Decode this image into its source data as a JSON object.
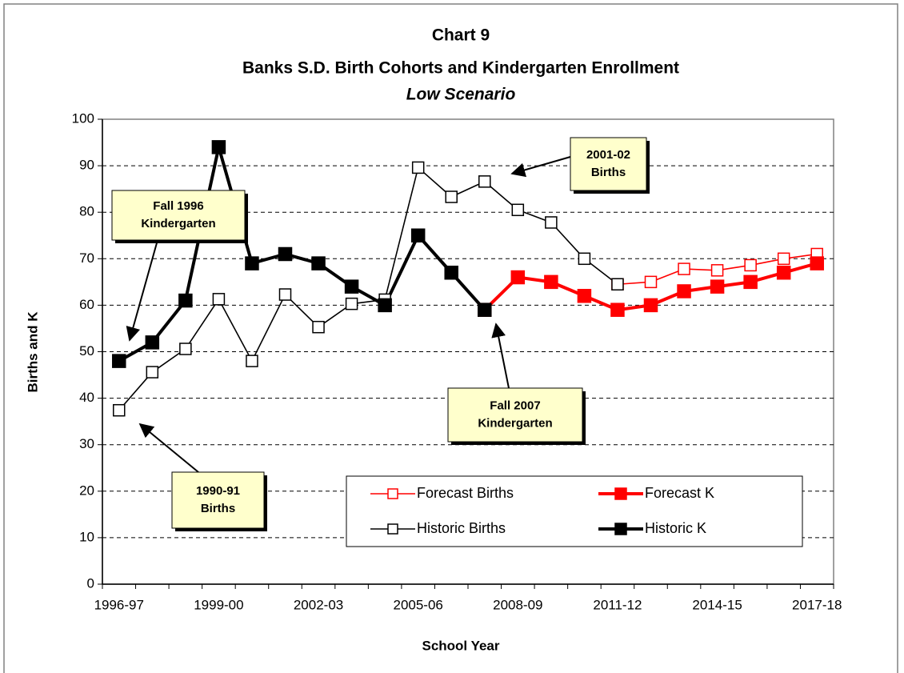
{
  "chart_data": {
    "type": "line",
    "title": "Chart 9",
    "subtitle": "Banks S.D. Birth Cohorts and Kindergarten Enrollment",
    "scenario": "Low Scenario",
    "x_label": "School Year",
    "y_label": "Births and K",
    "categories": [
      "1996-97",
      null,
      null,
      "1999-00",
      null,
      null,
      "2002-03",
      null,
      null,
      "2005-06",
      null,
      null,
      "2008-09",
      null,
      null,
      "2011-12",
      null,
      null,
      "2014-15",
      null,
      null,
      "2017-18"
    ],
    "ylim": [
      0,
      100
    ],
    "yticks": [
      0,
      10,
      20,
      30,
      40,
      50,
      60,
      70,
      80,
      90,
      100
    ],
    "grid": true,
    "series": [
      {
        "name": "Forecast Births",
        "color": "#ff0000",
        "filled": false,
        "values": [
          null,
          null,
          null,
          null,
          null,
          null,
          null,
          null,
          null,
          null,
          null,
          null,
          null,
          null,
          null,
          64.5,
          65,
          67.8,
          67.5,
          68.6,
          70,
          71
        ]
      },
      {
        "name": "Forecast K",
        "color": "#ff0000",
        "filled": true,
        "values": [
          null,
          null,
          null,
          null,
          null,
          null,
          null,
          null,
          null,
          null,
          null,
          59,
          66,
          65,
          62,
          59,
          60,
          63,
          64,
          65,
          67,
          69
        ]
      },
      {
        "name": "Historic Births",
        "color": "#000000",
        "filled": false,
        "values": [
          37.4,
          45.6,
          50.6,
          61.3,
          48,
          62.3,
          55.3,
          60.3,
          61.2,
          89.6,
          83.3,
          86.6,
          80.5,
          77.8,
          70,
          64.5,
          null,
          null,
          null,
          null,
          null,
          null
        ]
      },
      {
        "name": "Historic K",
        "color": "#000000",
        "filled": true,
        "values": [
          48,
          52,
          61,
          94,
          69,
          71,
          69,
          64,
          60,
          75,
          67,
          59,
          null,
          null,
          null,
          null,
          null,
          null,
          null,
          null,
          null,
          null
        ]
      }
    ],
    "annotations": [
      {
        "lines": [
          "Fall 1996",
          "Kindergarten"
        ]
      },
      {
        "lines": [
          "2001-02",
          "Births"
        ]
      },
      {
        "lines": [
          "Fall 2007",
          "Kindergarten"
        ]
      },
      {
        "lines": [
          "1990-91",
          "Births"
        ]
      }
    ]
  }
}
